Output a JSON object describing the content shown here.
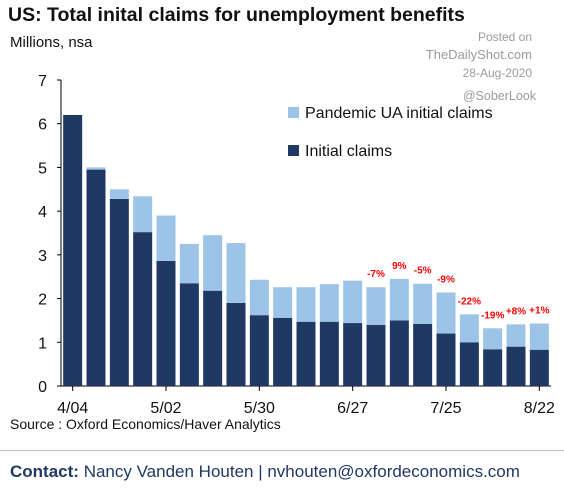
{
  "header": {
    "title": "US: Total inital claims for unemployment benefits",
    "subtitle": "Millions, nsa"
  },
  "watermark": {
    "posted_label": "Posted on",
    "site": "TheDailyShot.com",
    "date": "28-Aug-2020",
    "handle": "@SoberLook"
  },
  "footer": {
    "source": "Source : Oxford Economics/Haver Analytics",
    "contact_label": "Contact:",
    "contact_text": "Nancy Vanden Houten | nvhouten@oxfordeconomics.com"
  },
  "colors": {
    "initial": "#1f3864",
    "pandemic": "#9dc3e6"
  },
  "chart_data": {
    "type": "bar",
    "stacked": true,
    "categories": [
      "4/04",
      "",
      "",
      "",
      "5/02",
      "",
      "",
      "",
      "5/30",
      "",
      "",
      "",
      "6/27",
      "",
      "",
      "",
      "7/25",
      "",
      "",
      "",
      "8/22"
    ],
    "tick_labels": [
      "4/04",
      "5/02",
      "5/30",
      "6/27",
      "7/25",
      "8/22"
    ],
    "series": [
      {
        "name": "Initial claims",
        "values": [
          6.2,
          4.95,
          4.28,
          3.52,
          2.86,
          2.35,
          2.18,
          1.9,
          1.62,
          1.56,
          1.47,
          1.47,
          1.44,
          1.4,
          1.5,
          1.42,
          1.2,
          1.0,
          0.84,
          0.9,
          0.83
        ]
      },
      {
        "name": "Pandemic UA initial claims",
        "values": [
          0,
          0.05,
          0.22,
          0.82,
          1.04,
          0.9,
          1.27,
          1.37,
          0.81,
          0.7,
          0.79,
          0.86,
          0.97,
          0.86,
          0.95,
          0.92,
          0.94,
          0.64,
          0.48,
          0.51,
          0.6
        ]
      }
    ],
    "annotations": [
      {
        "index": 13,
        "text": "-7%"
      },
      {
        "index": 14,
        "text": "9%"
      },
      {
        "index": 15,
        "text": "-5%"
      },
      {
        "index": 16,
        "text": "-9%"
      },
      {
        "index": 17,
        "text": "-22%"
      },
      {
        "index": 18,
        "text": "-19%"
      },
      {
        "index": 19,
        "text": "+8%"
      },
      {
        "index": 20,
        "text": "+1%"
      }
    ],
    "ylim": [
      0,
      7
    ],
    "yticks": [
      0,
      1,
      2,
      3,
      4,
      5,
      6,
      7
    ],
    "legend_position": "top-right",
    "grid": false
  }
}
